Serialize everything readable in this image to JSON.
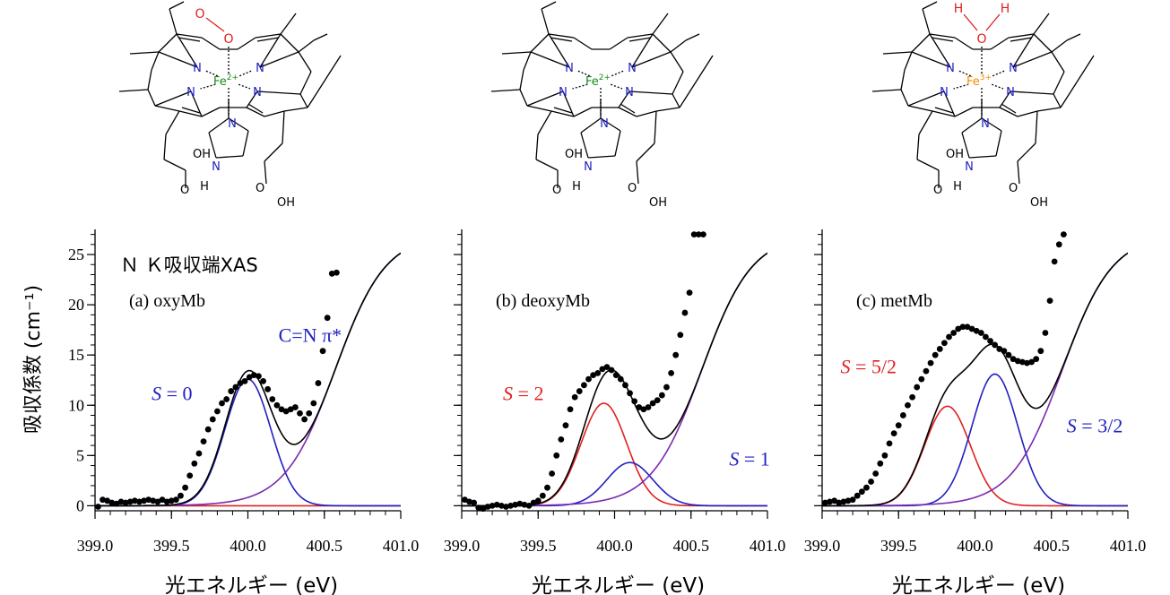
{
  "molecules": [
    {
      "ligand_top": "O",
      "ligand_top2": "O",
      "ligand_color": "#e02020",
      "metal": "Fe",
      "metal_charge": "2+",
      "metal_color": "#1a8a1a",
      "N": "N",
      "OH": "OH",
      "O": "O",
      "H": "H"
    },
    {
      "ligand_top": "",
      "ligand_top2": "",
      "ligand_color": "#e02020",
      "metal": "Fe",
      "metal_charge": "2+",
      "metal_color": "#1a8a1a",
      "N": "N",
      "OH": "OH",
      "O": "O",
      "H": "H"
    },
    {
      "ligand_top": "O",
      "ligand_top2": "H",
      "ligand_color": "#e02020",
      "metal": "Fe",
      "metal_charge": "3+",
      "metal_color": "#f08a00",
      "N": "N",
      "OH": "OH",
      "O": "O",
      "H": "H"
    }
  ],
  "chart_data": [
    {
      "type": "line",
      "panel_label": "(a) oxyMb",
      "header": "Ｎ Ｋ吸収端XAS",
      "xlabel": "光エネルギー (eV)",
      "ylabel": "吸収係数 (cm⁻¹)",
      "xlim": [
        399.0,
        401.0
      ],
      "ylim": [
        -0.5,
        27.5
      ],
      "xticks": [
        399.0,
        399.5,
        400.0,
        400.5,
        401.0
      ],
      "xtick_labels": [
        "399.0",
        "399.5",
        "400.0",
        "400.5",
        "401.0"
      ],
      "yticks": [
        0,
        5,
        10,
        15,
        20,
        25
      ],
      "ytick_labels": [
        "0",
        "5",
        "10",
        "15",
        "20",
        "25"
      ],
      "annotations": [
        {
          "text": "C=N π*",
          "color": "#2020c0",
          "x": 400.2,
          "y": 16.3
        },
        {
          "text": "S = 0",
          "color": "#2020c0",
          "x": 399.37,
          "y": 10.5
        }
      ],
      "curves": [
        {
          "role": "fit_total",
          "color": "#000000",
          "gauss": [
            {
              "a": 12.6,
              "c": 400.0,
              "w": 0.15
            }
          ],
          "edge": {
            "a": 27.0,
            "x0": 400.57,
            "w": 0.165
          }
        },
        {
          "role": "component",
          "color": "#2020c0",
          "gauss": [
            {
              "a": 12.6,
              "c": 400.0,
              "w": 0.15
            }
          ],
          "edge": null
        },
        {
          "role": "component",
          "color": "#e02020",
          "gauss": [
            {
              "a": 0.0,
              "c": 400.0,
              "w": 0.15
            }
          ],
          "edge": null
        },
        {
          "role": "edge",
          "color": "#7a2ab0",
          "gauss": [],
          "edge": {
            "a": 27.0,
            "x0": 400.57,
            "w": 0.165
          }
        }
      ],
      "points": {
        "x": [
          399.02,
          399.05,
          399.08,
          399.11,
          399.14,
          399.17,
          399.2,
          399.23,
          399.26,
          399.29,
          399.32,
          399.35,
          399.38,
          399.41,
          399.44,
          399.47,
          399.5,
          399.53,
          399.56,
          399.59,
          399.62,
          399.65,
          399.68,
          399.71,
          399.74,
          399.77,
          399.8,
          399.83,
          399.86,
          399.89,
          399.92,
          399.95,
          399.98,
          400.01,
          400.04,
          400.07,
          400.1,
          400.13,
          400.16,
          400.19,
          400.22,
          400.25,
          400.28,
          400.31,
          400.34,
          400.37,
          400.4,
          400.43,
          400.46,
          400.49,
          400.52,
          400.55,
          400.58
        ],
        "y": [
          -0.1,
          0.6,
          0.5,
          0.3,
          0.2,
          0.4,
          0.3,
          0.4,
          0.5,
          0.4,
          0.5,
          0.6,
          0.5,
          0.4,
          0.6,
          0.4,
          0.5,
          0.6,
          1.0,
          1.8,
          3.0,
          4.2,
          5.2,
          6.4,
          7.6,
          8.6,
          9.4,
          10.2,
          10.6,
          11.4,
          11.8,
          12.2,
          12.4,
          12.8,
          13.0,
          12.9,
          12.4,
          11.6,
          10.6,
          10.0,
          9.6,
          9.4,
          9.6,
          9.8,
          9.2,
          8.6,
          9.2,
          10.2,
          12.2,
          15.4,
          18.7,
          23.1,
          23.2
        ]
      }
    },
    {
      "type": "line",
      "panel_label": "(b) deoxyMb",
      "header": "",
      "xlabel": "光エネルギー (eV)",
      "ylabel": "",
      "xlim": [
        399.0,
        401.0
      ],
      "ylim": [
        -0.5,
        27.5
      ],
      "xticks": [
        399.0,
        399.5,
        400.0,
        400.5,
        401.0
      ],
      "xtick_labels": [
        "399.0",
        "399.5",
        "400.0",
        "400.5",
        "401.0"
      ],
      "yticks": [
        0,
        5,
        10,
        15,
        20,
        25
      ],
      "ytick_labels": [],
      "annotations": [
        {
          "text": "S = 2",
          "color": "#e02020",
          "x": 399.27,
          "y": 10.5
        },
        {
          "text": "S = 1",
          "color": "#2020c0",
          "x": 400.75,
          "y": 4.0
        }
      ],
      "curves": [
        {
          "role": "fit_total",
          "color": "#000000",
          "gauss": [
            {
              "a": 10.2,
              "c": 399.93,
              "w": 0.15
            },
            {
              "a": 4.3,
              "c": 400.1,
              "w": 0.15
            }
          ],
          "edge": {
            "a": 27.0,
            "x0": 400.57,
            "w": 0.165
          }
        },
        {
          "role": "component",
          "color": "#2020c0",
          "gauss": [
            {
              "a": 4.3,
              "c": 400.1,
              "w": 0.15
            }
          ],
          "edge": null
        },
        {
          "role": "component",
          "color": "#e02020",
          "gauss": [
            {
              "a": 10.2,
              "c": 399.93,
              "w": 0.15
            }
          ],
          "edge": null
        },
        {
          "role": "edge",
          "color": "#7a2ab0",
          "gauss": [],
          "edge": {
            "a": 27.0,
            "x0": 400.57,
            "w": 0.165
          }
        }
      ],
      "points": {
        "x": [
          399.02,
          399.05,
          399.08,
          399.11,
          399.14,
          399.17,
          399.2,
          399.23,
          399.26,
          399.29,
          399.32,
          399.35,
          399.38,
          399.41,
          399.44,
          399.47,
          399.5,
          399.53,
          399.56,
          399.59,
          399.62,
          399.65,
          399.68,
          399.71,
          399.74,
          399.77,
          399.8,
          399.83,
          399.86,
          399.89,
          399.92,
          399.95,
          399.98,
          400.01,
          400.04,
          400.07,
          400.1,
          400.13,
          400.16,
          400.19,
          400.22,
          400.25,
          400.28,
          400.31,
          400.34,
          400.37,
          400.4,
          400.43,
          400.46,
          400.49,
          400.52,
          400.55,
          400.58
        ],
        "y": [
          0.6,
          0.4,
          0.3,
          -0.2,
          -0.3,
          -0.1,
          0.0,
          0.1,
          0.0,
          -0.1,
          0.0,
          0.1,
          0.2,
          0.1,
          0.0,
          0.3,
          0.5,
          1.0,
          1.8,
          3.2,
          5.0,
          6.6,
          8.0,
          9.6,
          10.8,
          11.4,
          12.0,
          12.6,
          13.0,
          13.2,
          13.6,
          13.8,
          13.5,
          13.0,
          12.6,
          12.0,
          11.2,
          10.4,
          9.8,
          9.6,
          9.8,
          10.2,
          10.5,
          11.0,
          11.8,
          13.2,
          15.0,
          17.0,
          19.2,
          21.2,
          27.0,
          27.0,
          27.0
        ]
      }
    },
    {
      "type": "line",
      "panel_label": "(c) metMb",
      "header": "",
      "xlabel": "光エネルギー (eV)",
      "ylabel": "",
      "xlim": [
        399.0,
        401.0
      ],
      "ylim": [
        -0.5,
        27.5
      ],
      "xticks": [
        399.0,
        399.5,
        400.0,
        400.5,
        401.0
      ],
      "xtick_labels": [
        "399.0",
        "399.5",
        "400.0",
        "400.5",
        "401.0"
      ],
      "yticks": [
        0,
        5,
        10,
        15,
        20,
        25
      ],
      "ytick_labels": [],
      "annotations": [
        {
          "text": "S = 5/2",
          "color": "#e02020",
          "x": 399.12,
          "y": 13.2
        },
        {
          "text": "S = 3/2",
          "color": "#2020c0",
          "x": 400.6,
          "y": 7.3
        }
      ],
      "curves": [
        {
          "role": "fit_total",
          "color": "#000000",
          "gauss": [
            {
              "a": 9.9,
              "c": 399.82,
              "w": 0.15
            },
            {
              "a": 13.1,
              "c": 400.13,
              "w": 0.15
            }
          ],
          "edge": {
            "a": 27.0,
            "x0": 400.57,
            "w": 0.165
          }
        },
        {
          "role": "component",
          "color": "#2020c0",
          "gauss": [
            {
              "a": 13.1,
              "c": 400.13,
              "w": 0.15
            }
          ],
          "edge": null
        },
        {
          "role": "component",
          "color": "#e02020",
          "gauss": [
            {
              "a": 9.9,
              "c": 399.82,
              "w": 0.15
            }
          ],
          "edge": null
        },
        {
          "role": "edge",
          "color": "#7a2ab0",
          "gauss": [],
          "edge": {
            "a": 27.0,
            "x0": 400.57,
            "w": 0.165
          }
        }
      ],
      "points": {
        "x": [
          399.02,
          399.05,
          399.08,
          399.11,
          399.14,
          399.17,
          399.2,
          399.23,
          399.26,
          399.29,
          399.32,
          399.35,
          399.38,
          399.41,
          399.44,
          399.47,
          399.5,
          399.53,
          399.56,
          399.59,
          399.62,
          399.65,
          399.68,
          399.71,
          399.74,
          399.77,
          399.8,
          399.83,
          399.86,
          399.89,
          399.92,
          399.95,
          399.98,
          400.01,
          400.04,
          400.07,
          400.1,
          400.13,
          400.16,
          400.19,
          400.22,
          400.25,
          400.28,
          400.31,
          400.34,
          400.37,
          400.4,
          400.43,
          400.46,
          400.49,
          400.52,
          400.55,
          400.58
        ],
        "y": [
          0.3,
          0.4,
          0.5,
          0.3,
          0.4,
          0.5,
          0.6,
          1.0,
          1.4,
          1.8,
          2.4,
          3.2,
          4.2,
          5.0,
          6.2,
          7.2,
          8.0,
          9.0,
          10.0,
          10.8,
          11.8,
          12.6,
          13.4,
          14.2,
          15.0,
          15.6,
          16.2,
          16.8,
          17.2,
          17.6,
          17.8,
          17.8,
          17.6,
          17.4,
          17.2,
          16.8,
          16.4,
          16.0,
          15.6,
          15.4,
          15.0,
          14.6,
          14.4,
          14.3,
          14.2,
          14.3,
          14.6,
          15.4,
          17.2,
          20.4,
          24.3,
          26.0,
          27.0
        ]
      }
    }
  ]
}
